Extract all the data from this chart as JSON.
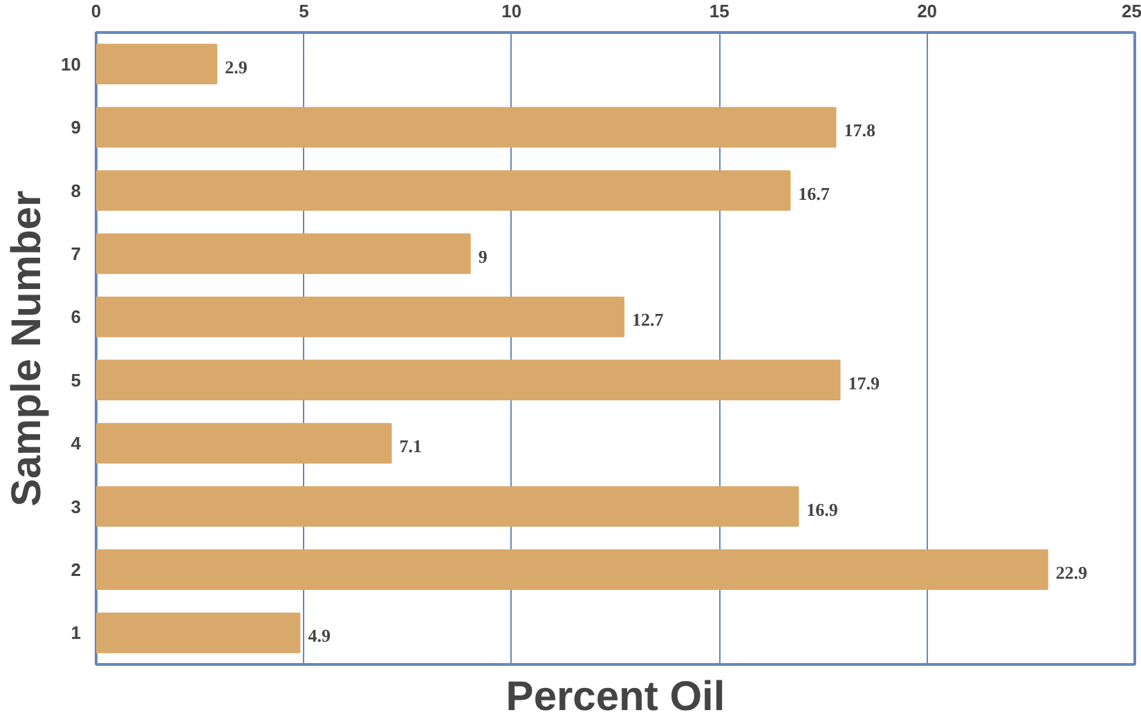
{
  "chart_data": {
    "type": "bar",
    "orientation": "horizontal",
    "xlabel": "Percent Oil",
    "ylabel": "Sample Number",
    "categories": [
      "10",
      "9",
      "8",
      "7",
      "6",
      "5",
      "4",
      "3",
      "2",
      "1"
    ],
    "values": [
      2.9,
      17.8,
      16.7,
      9,
      12.7,
      17.9,
      7.1,
      16.9,
      22.9,
      4.9
    ],
    "color": "#d8a96b",
    "data_labels": true,
    "xlim": [
      0,
      25
    ],
    "xticks": [
      0,
      5,
      10,
      15,
      20,
      25
    ],
    "grid": "x"
  }
}
